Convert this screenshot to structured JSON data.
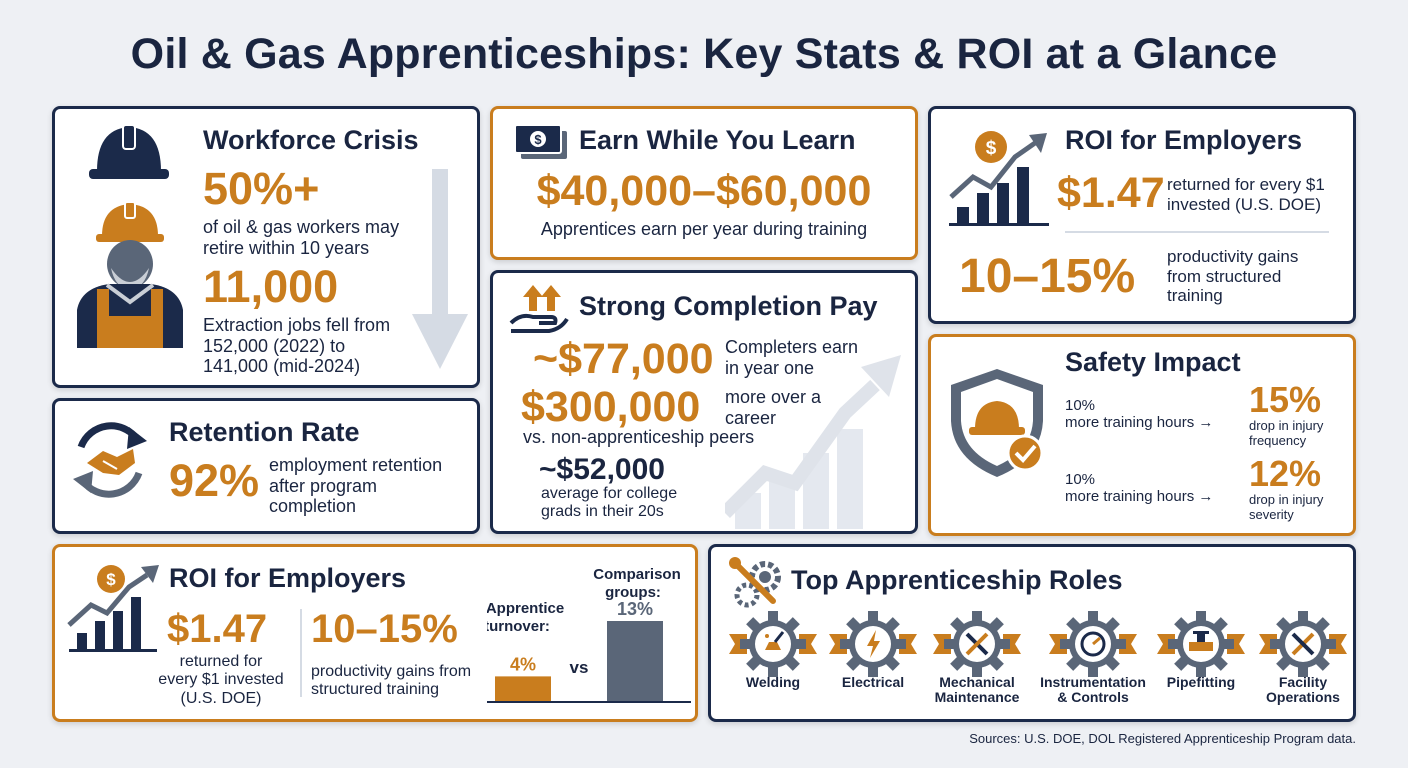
{
  "title": "Oil & Gas Apprenticeships: Key Stats & ROI at a Glance",
  "workforce": {
    "heading": "Workforce Crisis",
    "stat1": "50%+",
    "desc1_line1": "of oil & gas workers may",
    "desc1_line2": "retire within 10 years",
    "stat2": "11,000",
    "desc2_line1": "Extraction jobs fell from",
    "desc2_line2": "152,000 (2022) to",
    "desc2_line3": "141,000 (mid-2024)"
  },
  "earn": {
    "heading": "Earn While You Learn",
    "stat": "$40,000–$60,000",
    "desc": "Apprentices earn per year during training"
  },
  "roi_top": {
    "heading": "ROI for Employers",
    "stat1": "$1.47",
    "desc1_line1": "returned for every $1",
    "desc1_line2": "invested (U.S. DOE)",
    "stat2": "10–15%",
    "desc2_line1": "productivity gains",
    "desc2_line2": "from structured",
    "desc2_line3": "training"
  },
  "completion": {
    "heading": "Strong Completion Pay",
    "stat1": "~$77,000",
    "desc1_line1": "Completers earn",
    "desc1_line2": "in year one",
    "stat2": "$300,000",
    "desc2_line1": "more over a",
    "desc2_line2": "career",
    "desc2_line3": "vs. non-apprenticeship peers",
    "stat3": "~$52,000",
    "desc3_line1": "average for college",
    "desc3_line2": "grads in their 20s"
  },
  "safety": {
    "heading": "Safety Impact",
    "row1_left1": "10%",
    "row1_left2": "more training hours",
    "row1_stat": "15%",
    "row1_desc1": "drop in injury",
    "row1_desc2": "frequency",
    "row2_left1": "10%",
    "row2_left2": "more training hours",
    "row2_stat": "12%",
    "row2_desc1": "drop in injury",
    "row2_desc2": "severity"
  },
  "retention": {
    "heading": "Retention Rate",
    "stat": "92%",
    "desc_line1": "employment retention",
    "desc_line2": "after program",
    "desc_line3": "completion"
  },
  "roi_bottom": {
    "heading": "ROI for Employers",
    "stat1": "$1.47",
    "desc1_line1": "returned for",
    "desc1_line2": "every $1 invested",
    "desc1_line3": "(U.S. DOE)",
    "stat2": "10–15%",
    "desc2_line1": "productivity gains from",
    "desc2_line2": "structured training"
  },
  "chart_data": {
    "type": "bar",
    "categories": [
      "Apprentice turnover:",
      "Comparison groups:"
    ],
    "values": [
      4,
      13
    ],
    "value_labels": [
      "4%",
      "13%"
    ],
    "separator": "vs",
    "colors": [
      "#c97d1e",
      "#5a6678"
    ]
  },
  "roles": {
    "heading": "Top Apprenticeship Roles",
    "items": [
      {
        "line1": "Welding",
        "line2": ""
      },
      {
        "line1": "Electrical",
        "line2": ""
      },
      {
        "line1": "Mechanical",
        "line2": "Maintenance"
      },
      {
        "line1": "Instrumentation",
        "line2": "& Controls"
      },
      {
        "line1": "Pipefitting",
        "line2": ""
      },
      {
        "line1": "Facility",
        "line2": "Operations"
      }
    ]
  },
  "sources": "Sources: U.S. DOE, DOL Registered Apprenticeship Program data.",
  "colors": {
    "navy": "#1b2a4a",
    "orange": "#c97d1e",
    "background": "#eef0f4"
  }
}
